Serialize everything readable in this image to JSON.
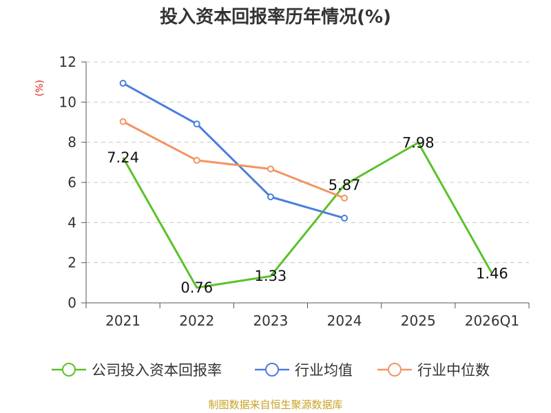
{
  "chart_data": {
    "type": "line",
    "title": "投入资本回报率历年情况(%)",
    "ylabel": "(%)",
    "xlabel": "",
    "categories": [
      "2021",
      "2022",
      "2023",
      "2024",
      "2025",
      "2026Q1"
    ],
    "ylim": [
      0,
      12
    ],
    "yticks": [
      0,
      2,
      4,
      6,
      8,
      10,
      12
    ],
    "grid": true,
    "legend_position": "bottom",
    "series": [
      {
        "name": "公司投入资本回报率",
        "color": "#5bc129",
        "values": [
          7.24,
          0.76,
          1.33,
          5.87,
          7.98,
          1.46
        ],
        "labels": [
          "7.24",
          "0.76",
          "1.33",
          "5.87",
          "7.98",
          "1.46"
        ],
        "show_markers": false
      },
      {
        "name": "行业均值",
        "color": "#4a7fdc",
        "values": [
          10.94,
          8.91,
          5.28,
          4.22,
          null,
          null
        ],
        "show_markers": true
      },
      {
        "name": "行业中位数",
        "color": "#f39461",
        "values": [
          9.03,
          7.1,
          6.67,
          5.22,
          null,
          null
        ],
        "show_markers": true
      }
    ]
  },
  "source_text": "制图数据来自恒生聚源数据库"
}
